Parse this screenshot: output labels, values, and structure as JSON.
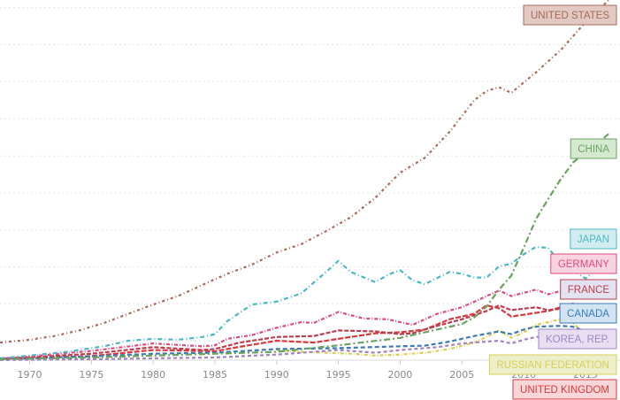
{
  "chart_data": {
    "type": "line",
    "title": "",
    "xlabel": "",
    "ylabel": "",
    "xlim": [
      1967.6,
      2017.8
    ],
    "ylim": [
      0,
      19.4
    ],
    "grid": "horizontal dotted",
    "legend": "end-of-line labels",
    "x_ticks": [
      {
        "year": 1970,
        "label": "1970"
      },
      {
        "year": 1975,
        "label": "1975"
      },
      {
        "year": 1980,
        "label": "1980"
      },
      {
        "year": 1985,
        "label": "1985"
      },
      {
        "year": 1990,
        "label": "1990"
      },
      {
        "year": 1995,
        "label": "1995"
      },
      {
        "year": 2000,
        "label": "2000"
      },
      {
        "year": 2005,
        "label": "2005"
      },
      {
        "year": 2010,
        "label": "2010"
      },
      {
        "year": 2015,
        "label": "2015"
      }
    ],
    "gridlines": [
      1.05,
      3.04,
      5.03,
      7.02,
      9.01,
      11.0,
      13.0,
      15.0,
      17.0,
      19.0
    ],
    "series": [
      {
        "name": "UNITED STATES",
        "color": "#a8695a",
        "dash": "3,3,1,3",
        "label_fill": "#e3c9c3",
        "label_order": 0,
        "points": [
          [
            1967.6,
            0.95
          ],
          [
            1970,
            1.1
          ],
          [
            1972,
            1.3
          ],
          [
            1974,
            1.6
          ],
          [
            1976,
            2.0
          ],
          [
            1978,
            2.5
          ],
          [
            1980,
            3.0
          ],
          [
            1982,
            3.45
          ],
          [
            1984,
            4.05
          ],
          [
            1986,
            4.65
          ],
          [
            1988,
            5.15
          ],
          [
            1990,
            5.8
          ],
          [
            1992,
            6.25
          ],
          [
            1994,
            6.95
          ],
          [
            1996,
            7.7
          ],
          [
            1998,
            8.75
          ],
          [
            2000,
            10.1
          ],
          [
            2002,
            10.9
          ],
          [
            2004,
            12.3
          ],
          [
            2006,
            14.0
          ],
          [
            2007,
            14.5
          ],
          [
            2008,
            14.7
          ],
          [
            2009,
            14.4
          ],
          [
            2011,
            15.5
          ],
          [
            2013,
            16.7
          ],
          [
            2015,
            18.2
          ],
          [
            2016.9,
            19.4
          ]
        ]
      },
      {
        "name": "CHINA",
        "color": "#6aa35f",
        "dash": "7,3,2,3",
        "label_fill": "#d5e8d0",
        "label_order": 1,
        "points": [
          [
            1967.6,
            0.05
          ],
          [
            1975,
            0.15
          ],
          [
            1985,
            0.35
          ],
          [
            1990,
            0.45
          ],
          [
            1995,
            0.8
          ],
          [
            2000,
            1.2
          ],
          [
            2005,
            1.95
          ],
          [
            2006,
            2.3
          ],
          [
            2007,
            2.9
          ],
          [
            2008,
            3.8
          ],
          [
            2009,
            4.55
          ],
          [
            2010,
            6.05
          ],
          [
            2011,
            7.6
          ],
          [
            2012,
            8.7
          ],
          [
            2013,
            9.75
          ],
          [
            2014,
            10.65
          ],
          [
            2015,
            11.2
          ],
          [
            2016,
            11.7
          ],
          [
            2016.9,
            12.2
          ]
        ]
      },
      {
        "name": "JAPAN",
        "color": "#4bb7c4",
        "dash": "5,3,1,3",
        "label_fill": "#d2ecef",
        "label_order": 2,
        "points": [
          [
            1967.6,
            0.1
          ],
          [
            1970,
            0.25
          ],
          [
            1973,
            0.45
          ],
          [
            1976,
            0.75
          ],
          [
            1978,
            1.05
          ],
          [
            1980,
            1.15
          ],
          [
            1982,
            1.1
          ],
          [
            1984,
            1.25
          ],
          [
            1985,
            1.4
          ],
          [
            1986,
            2.1
          ],
          [
            1988,
            3.0
          ],
          [
            1990,
            3.15
          ],
          [
            1992,
            3.6
          ],
          [
            1994,
            4.75
          ],
          [
            1995,
            5.35
          ],
          [
            1996,
            4.75
          ],
          [
            1998,
            4.2
          ],
          [
            1999,
            4.6
          ],
          [
            2000,
            4.85
          ],
          [
            2001,
            4.3
          ],
          [
            2002,
            4.1
          ],
          [
            2004,
            4.75
          ],
          [
            2005,
            4.65
          ],
          [
            2006,
            4.45
          ],
          [
            2007,
            4.45
          ],
          [
            2008,
            5.05
          ],
          [
            2009,
            5.2
          ],
          [
            2010,
            5.7
          ],
          [
            2011,
            6.1
          ],
          [
            2012,
            6.05
          ],
          [
            2013,
            5.2
          ],
          [
            2014,
            4.85
          ],
          [
            2015,
            4.4
          ],
          [
            2016,
            4.95
          ]
        ]
      },
      {
        "name": "GERMANY",
        "color": "#e0497e",
        "dash": "4,2,1,2",
        "label_fill": "#f8d4e1",
        "label_order": 3,
        "points": [
          [
            1967.6,
            0.08
          ],
          [
            1970,
            0.2
          ],
          [
            1975,
            0.5
          ],
          [
            1980,
            0.9
          ],
          [
            1984,
            0.75
          ],
          [
            1985,
            0.8
          ],
          [
            1986,
            1.15
          ],
          [
            1988,
            1.35
          ],
          [
            1990,
            1.75
          ],
          [
            1992,
            2.05
          ],
          [
            1993,
            2.0
          ],
          [
            1995,
            2.6
          ],
          [
            1997,
            2.25
          ],
          [
            1999,
            2.2
          ],
          [
            2001,
            1.9
          ],
          [
            2003,
            2.5
          ],
          [
            2005,
            2.85
          ],
          [
            2007,
            3.45
          ],
          [
            2008,
            3.75
          ],
          [
            2009,
            3.45
          ],
          [
            2011,
            3.8
          ],
          [
            2012,
            3.55
          ],
          [
            2014,
            3.9
          ],
          [
            2015,
            3.4
          ],
          [
            2016,
            3.5
          ]
        ]
      },
      {
        "name": "FRANCE",
        "color": "#bf3c4c",
        "dash": "5,2",
        "label_fill": "#e2e2f0",
        "label_order": 4,
        "points": [
          [
            1967.6,
            0.08
          ],
          [
            1970,
            0.15
          ],
          [
            1975,
            0.35
          ],
          [
            1980,
            0.7
          ],
          [
            1984,
            0.55
          ],
          [
            1985,
            0.6
          ],
          [
            1987,
            0.95
          ],
          [
            1990,
            1.25
          ],
          [
            1993,
            1.3
          ],
          [
            1995,
            1.6
          ],
          [
            1998,
            1.55
          ],
          [
            2000,
            1.4
          ],
          [
            2001,
            1.45
          ],
          [
            2003,
            1.85
          ],
          [
            2005,
            2.2
          ],
          [
            2007,
            2.65
          ],
          [
            2008,
            2.95
          ],
          [
            2009,
            2.7
          ],
          [
            2011,
            2.85
          ],
          [
            2012,
            2.7
          ],
          [
            2014,
            2.85
          ],
          [
            2015,
            2.45
          ],
          [
            2016,
            2.5
          ]
        ]
      },
      {
        "name": "CANADA",
        "color": "#3c79b6",
        "dash": "5,3",
        "label_fill": "#d2e4f3",
        "label_order": 5,
        "points": [
          [
            1967.6,
            0.06
          ],
          [
            1975,
            0.2
          ],
          [
            1980,
            0.35
          ],
          [
            1985,
            0.4
          ],
          [
            1990,
            0.6
          ],
          [
            1995,
            0.65
          ],
          [
            2000,
            0.75
          ],
          [
            2002,
            0.78
          ],
          [
            2004,
            1.0
          ],
          [
            2006,
            1.3
          ],
          [
            2008,
            1.55
          ],
          [
            2009,
            1.4
          ],
          [
            2010,
            1.65
          ],
          [
            2011,
            1.8
          ],
          [
            2013,
            1.85
          ],
          [
            2014,
            1.8
          ],
          [
            2015,
            1.55
          ],
          [
            2016,
            1.55
          ]
        ]
      },
      {
        "name": "KOREA, REP.",
        "color": "#a084c4",
        "dash": "4,3",
        "label_fill": "#e7def2",
        "label_order": 6,
        "points": [
          [
            1967.6,
            0.01
          ],
          [
            1975,
            0.05
          ],
          [
            1980,
            0.1
          ],
          [
            1985,
            0.15
          ],
          [
            1990,
            0.3
          ],
          [
            1995,
            0.55
          ],
          [
            1998,
            0.4
          ],
          [
            2000,
            0.55
          ],
          [
            2003,
            0.7
          ],
          [
            2005,
            0.9
          ],
          [
            2008,
            1.05
          ],
          [
            2009,
            0.9
          ],
          [
            2010,
            1.1
          ],
          [
            2011,
            1.25
          ],
          [
            2013,
            1.35
          ],
          [
            2014,
            1.45
          ],
          [
            2015,
            1.35
          ],
          [
            2016,
            1.4
          ]
        ]
      },
      {
        "name": "RUSSIAN FEDERATION",
        "color": "#d7cf55",
        "dash": "4,2,1,2",
        "label_fill": "#ecefc9",
        "label_order": 7,
        "points": [
          [
            1990,
            0.55
          ],
          [
            1992,
            0.45
          ],
          [
            1994,
            0.4
          ],
          [
            1996,
            0.35
          ],
          [
            1998,
            0.25
          ],
          [
            2000,
            0.3
          ],
          [
            2002,
            0.4
          ],
          [
            2004,
            0.6
          ],
          [
            2006,
            0.95
          ],
          [
            2007,
            1.25
          ],
          [
            2008,
            1.6
          ],
          [
            2009,
            1.2
          ],
          [
            2010,
            1.5
          ],
          [
            2011,
            1.9
          ],
          [
            2012,
            2.05
          ],
          [
            2013,
            2.2
          ],
          [
            2014,
            2.0
          ],
          [
            2015,
            1.35
          ],
          [
            2016,
            1.3
          ]
        ]
      },
      {
        "name": "UNITED KINGDOM",
        "color": "#d9383e",
        "dash": "6,2",
        "label_fill": "#f9d6d7",
        "label_order": 8,
        "points": [
          [
            1967.6,
            0.1
          ],
          [
            1970,
            0.12
          ],
          [
            1975,
            0.22
          ],
          [
            1980,
            0.55
          ],
          [
            1985,
            0.48
          ],
          [
            1987,
            0.72
          ],
          [
            1990,
            1.05
          ],
          [
            1993,
            0.95
          ],
          [
            1995,
            1.15
          ],
          [
            1998,
            1.45
          ],
          [
            2000,
            1.5
          ],
          [
            2002,
            1.65
          ],
          [
            2004,
            2.2
          ],
          [
            2006,
            2.5
          ],
          [
            2007,
            2.95
          ],
          [
            2008,
            2.8
          ],
          [
            2009,
            2.35
          ],
          [
            2010,
            2.45
          ],
          [
            2012,
            2.65
          ],
          [
            2014,
            3.05
          ],
          [
            2015,
            2.9
          ],
          [
            2016,
            2.65
          ]
        ]
      }
    ]
  }
}
